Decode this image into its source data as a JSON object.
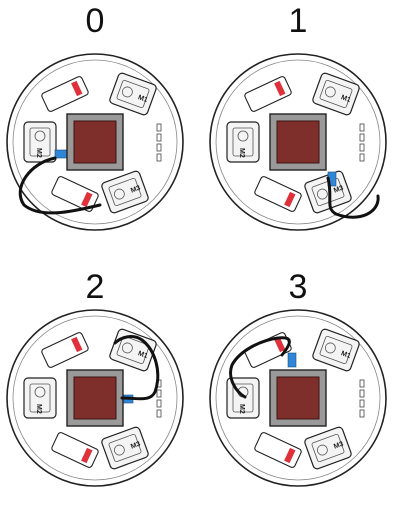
{
  "panels": [
    {
      "label": "0",
      "cable_end": "left"
    },
    {
      "label": "1",
      "cable_end": "bottom-right"
    },
    {
      "label": "2",
      "cable_end": "top-right"
    },
    {
      "label": "3",
      "cable_end": "top-left"
    }
  ],
  "motor_labels": {
    "m1": "M1",
    "m2": "M2",
    "m3": "M3"
  },
  "colors": {
    "center_block": "#7e2f2b",
    "center_frame": "#9a9a9a",
    "connector": "#2f86d6",
    "cable": "#111111",
    "outline": "#222222",
    "red_part": "#e0303a"
  }
}
